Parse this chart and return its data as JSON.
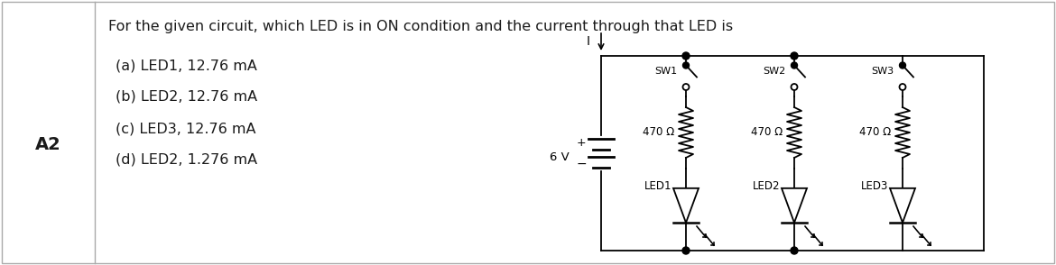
{
  "title": "For the given circuit, which LED is in ON condition and the current through that LED is",
  "label_A2": "A2",
  "options": [
    "(a) LED1, 12.76 mA",
    "(b) LED2, 12.76 mA",
    "(c) LED3, 12.76 mA",
    "(d) LED2, 1.276 mA"
  ],
  "circuit": {
    "voltage": "6 V",
    "resistors": [
      "470 Ω",
      "470 Ω",
      "470 Ω"
    ],
    "switches": [
      "SW1",
      "SW2",
      "SW3"
    ],
    "leds": [
      "LED1",
      "LED2",
      "LED3"
    ],
    "current_label": "I"
  },
  "bg_color": "#ffffff",
  "text_color": "#1a1a1a",
  "border_color": "#888888",
  "font_size_title": 11.5,
  "font_size_options": 11.5,
  "font_size_label": 14
}
